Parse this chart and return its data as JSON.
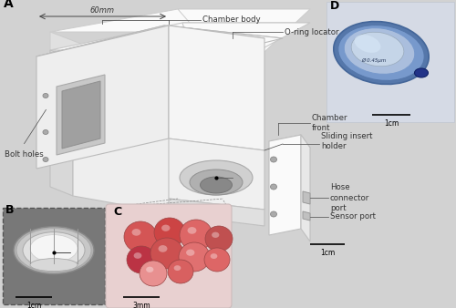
{
  "fig_width": 5.0,
  "fig_height": 3.38,
  "dpi": 100,
  "bg_color": "#d2d2d2",
  "chamber_color_top": "#f8f8f8",
  "chamber_color_front": "#e8e8e8",
  "chamber_color_side": "#f2f2f2",
  "chamber_color_dark": "#cccccc",
  "panel_B_bg": "#808080",
  "panel_C_bg": "#e8d0d0",
  "panel_D_bg": "#d8dde8",
  "annotations": {
    "chamber_body": "Chamber body",
    "60mm": "60mm",
    "oring": "O-ring locator",
    "sliding": "Sliding insert\nholder",
    "chamber_front": "Chamber\nfront",
    "bolt_holes": "Bolt holes",
    "hose": "Hose\nconnector\nport",
    "sensor": "Sensor port",
    "A": "A",
    "B": "B",
    "C": "C",
    "D": "D",
    "scale_1cm_B": "1cm",
    "scale_3mm_C": "3mm",
    "scale_1cm_D": "1cm",
    "scale_1cm_main": "1cm"
  }
}
